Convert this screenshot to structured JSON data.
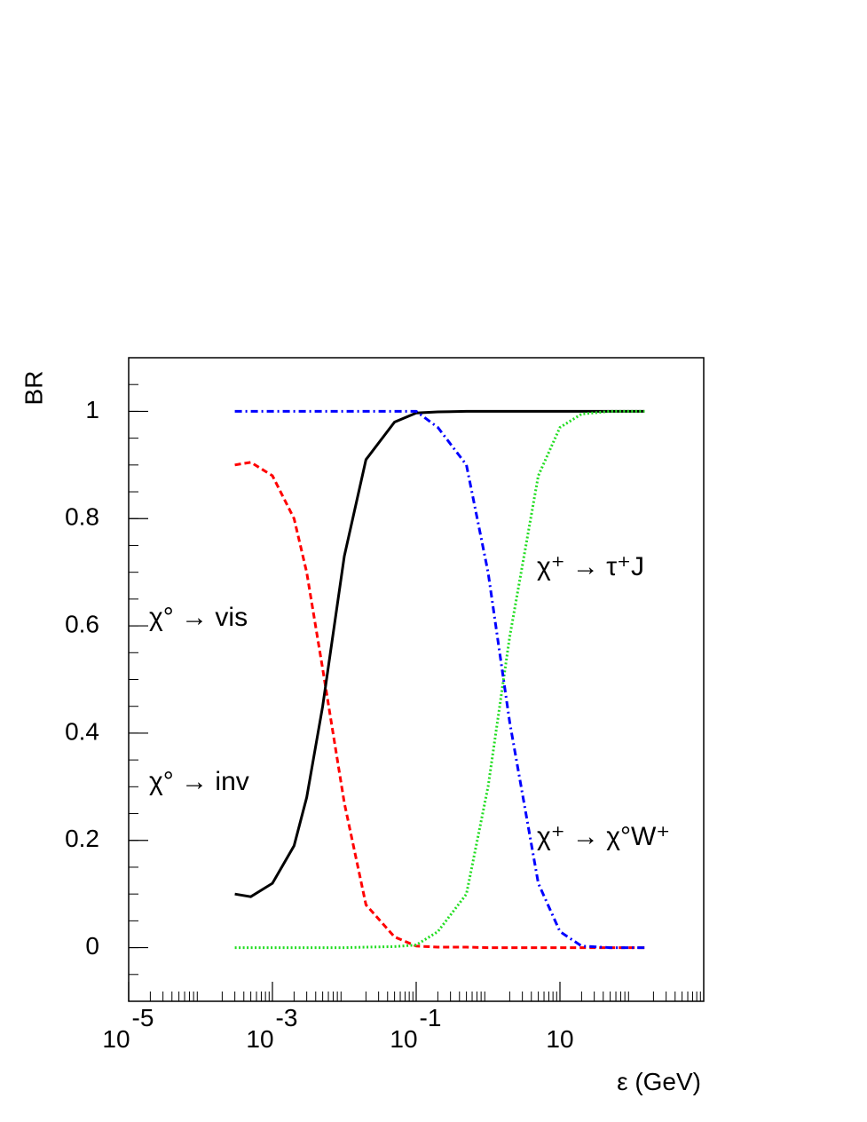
{
  "chart_data": {
    "type": "line",
    "y_label": "BR",
    "x_label": "ε (GeV)",
    "log_x": true,
    "xlim": [
      1e-05,
      1000
    ],
    "ylim": [
      -0.1,
      1.1
    ],
    "xticks": [
      {
        "value": 1e-05,
        "label": "10",
        "exponent": "-5"
      },
      {
        "value": 0.001,
        "label": "10",
        "exponent": "-3"
      },
      {
        "value": 0.1,
        "label": "10",
        "exponent": "-1"
      },
      10
    ],
    "yticks": [
      0,
      0.2,
      0.4,
      0.6,
      0.8,
      1
    ],
    "x": [
      0.0003,
      0.0005,
      0.001,
      0.002,
      0.003,
      0.005,
      0.01,
      0.02,
      0.05,
      0.1,
      0.2,
      0.5,
      1,
      2,
      5,
      10,
      20,
      50,
      150
    ],
    "series": [
      {
        "name": "χ° → vis",
        "color": "#ff0000",
        "dash": "dashed",
        "values": [
          0.9,
          0.905,
          0.88,
          0.8,
          0.7,
          0.52,
          0.27,
          0.08,
          0.02,
          0.003,
          0.001,
          0.001,
          0,
          0,
          0,
          0,
          0,
          0,
          0
        ]
      },
      {
        "name": "χ° → inv",
        "color": "#000000",
        "dash": "solid",
        "values": [
          0.1,
          0.095,
          0.12,
          0.19,
          0.28,
          0.45,
          0.73,
          0.91,
          0.98,
          0.997,
          0.999,
          1,
          1,
          1,
          1,
          1,
          1,
          1,
          1
        ]
      },
      {
        "name": "χ⁺ → τ⁺J",
        "color": "#22dd22",
        "dash": "dotted",
        "values": [
          0,
          0,
          0,
          0,
          0,
          0,
          0,
          0.001,
          0.002,
          0.005,
          0.03,
          0.1,
          0.3,
          0.58,
          0.88,
          0.97,
          0.995,
          1,
          1
        ]
      },
      {
        "name": "χ⁺ → χ°W⁺",
        "color": "#0000ff",
        "dash": "dashdot",
        "values": [
          1,
          1,
          1,
          1,
          1,
          1,
          1,
          1,
          1,
          1,
          0.97,
          0.9,
          0.7,
          0.42,
          0.12,
          0.03,
          0.003,
          0,
          0
        ]
      }
    ]
  }
}
